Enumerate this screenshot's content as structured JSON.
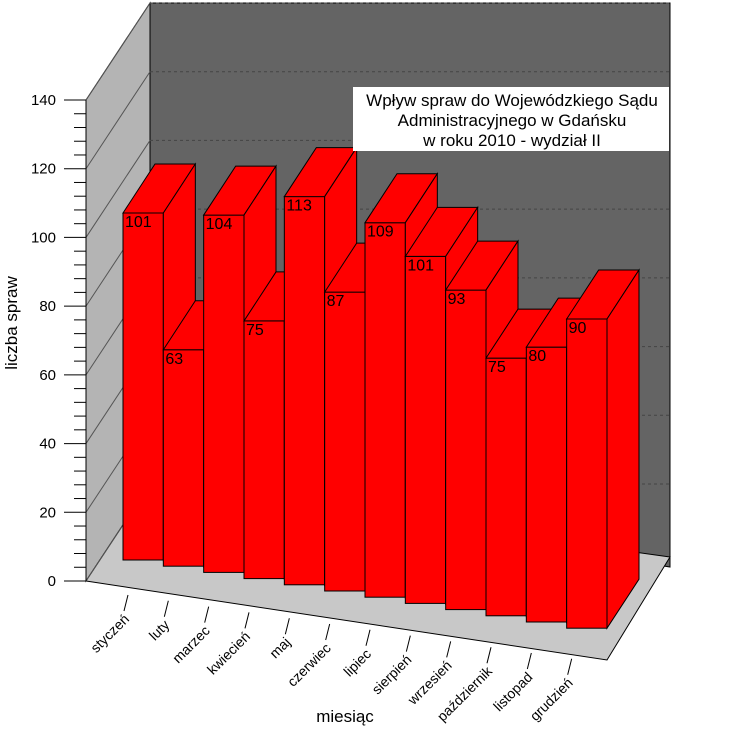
{
  "chart_data": {
    "type": "bar",
    "title_lines": [
      "Wpływ spraw do Wojewódzkiego Sądu",
      "Administracyjnego w Gdańsku",
      "w roku 2010 - wydział II"
    ],
    "xlabel": "miesiąc",
    "ylabel": "liczba spraw",
    "categories": [
      "styczeń",
      "luty",
      "marzec",
      "kwiecień",
      "maj",
      "czerwiec",
      "lipiec",
      "sierpień",
      "wrzesień",
      "październik",
      "listopad",
      "grudzień"
    ],
    "values": [
      101,
      63,
      104,
      75,
      113,
      87,
      109,
      101,
      93,
      75,
      80,
      90
    ],
    "ylim": [
      0,
      140
    ],
    "yticks": [
      "0",
      "20",
      "40",
      "60",
      "80",
      "100",
      "120",
      "140"
    ],
    "bar_color": "#ff0000",
    "wall_color": "#646464",
    "side_wall_color": "#b4b4b4",
    "floor_color": "#c8c8c8",
    "grid": true
  }
}
